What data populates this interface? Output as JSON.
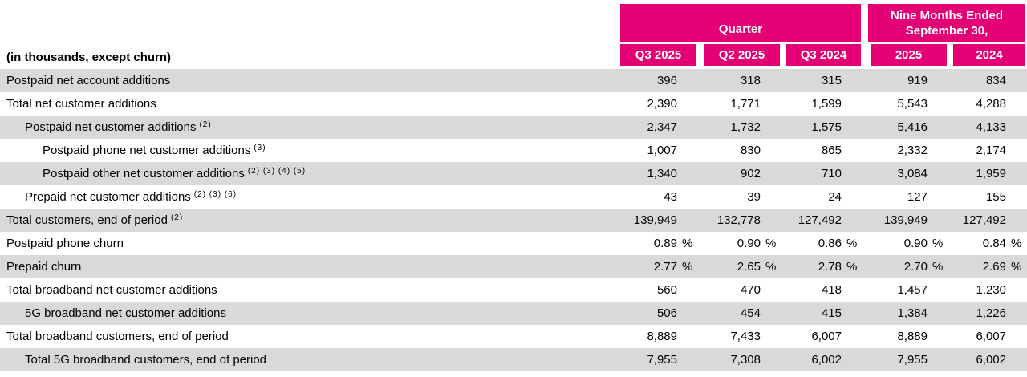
{
  "header": {
    "unit_label": "(in thousands, except churn)",
    "groups": [
      {
        "label": "Quarter",
        "colspan": 3
      },
      {
        "label": "Nine Months Ended September 30,",
        "line1": "Nine Months Ended",
        "line2": "September 30,",
        "colspan": 2
      }
    ],
    "columns": [
      "Q3 2025",
      "Q2 2025",
      "Q3 2024",
      "2025",
      "2024"
    ]
  },
  "rows": [
    {
      "label": "Postpaid net account additions",
      "sup": "",
      "indent": 0,
      "suffix": "",
      "values": [
        "396",
        "318",
        "315",
        "919",
        "834"
      ]
    },
    {
      "label": "Total net customer additions",
      "sup": "",
      "indent": 0,
      "suffix": "",
      "values": [
        "2,390",
        "1,771",
        "1,599",
        "5,543",
        "4,288"
      ]
    },
    {
      "label": "Postpaid net customer additions",
      "sup": "(2)",
      "indent": 1,
      "suffix": "",
      "values": [
        "2,347",
        "1,732",
        "1,575",
        "5,416",
        "4,133"
      ]
    },
    {
      "label": "Postpaid phone net customer additions",
      "sup": "(3)",
      "indent": 2,
      "suffix": "",
      "values": [
        "1,007",
        "830",
        "865",
        "2,332",
        "2,174"
      ]
    },
    {
      "label": "Postpaid other net customer additions",
      "sup": "(2) (3) (4) (5)",
      "indent": 2,
      "suffix": "",
      "values": [
        "1,340",
        "902",
        "710",
        "3,084",
        "1,959"
      ]
    },
    {
      "label": "Prepaid net customer additions",
      "sup": "(2) (3) (6)",
      "indent": 1,
      "suffix": "",
      "values": [
        "43",
        "39",
        "24",
        "127",
        "155"
      ]
    },
    {
      "label": "Total customers, end of period",
      "sup": "(2)",
      "indent": 0,
      "suffix": "",
      "values": [
        "139,949",
        "132,778",
        "127,492",
        "139,949",
        "127,492"
      ]
    },
    {
      "label": "Postpaid phone churn",
      "sup": "",
      "indent": 0,
      "suffix": "%",
      "values": [
        "0.89",
        "0.90",
        "0.86",
        "0.90",
        "0.84"
      ]
    },
    {
      "label": "Prepaid churn",
      "sup": "",
      "indent": 0,
      "suffix": "%",
      "values": [
        "2.77",
        "2.65",
        "2.78",
        "2.70",
        "2.69"
      ]
    },
    {
      "label": "Total broadband net customer additions",
      "sup": "",
      "indent": 0,
      "suffix": "",
      "values": [
        "560",
        "470",
        "418",
        "1,457",
        "1,230"
      ]
    },
    {
      "label": "5G broadband net customer additions",
      "sup": "",
      "indent": 1,
      "suffix": "",
      "values": [
        "506",
        "454",
        "415",
        "1,384",
        "1,226"
      ]
    },
    {
      "label": "Total broadband customers, end of period",
      "sup": "",
      "indent": 0,
      "suffix": "",
      "values": [
        "8,889",
        "7,433",
        "6,007",
        "8,889",
        "6,007"
      ]
    },
    {
      "label": "Total 5G broadband customers, end of period",
      "sup": "",
      "indent": 1,
      "suffix": "",
      "values": [
        "7,955",
        "7,308",
        "6,002",
        "7,955",
        "6,002"
      ]
    }
  ],
  "colors": {
    "accent_magenta": "#E20074",
    "row_shade": "#D9D9D9",
    "header_text": "#FFFFFF",
    "body_text": "#000000"
  }
}
